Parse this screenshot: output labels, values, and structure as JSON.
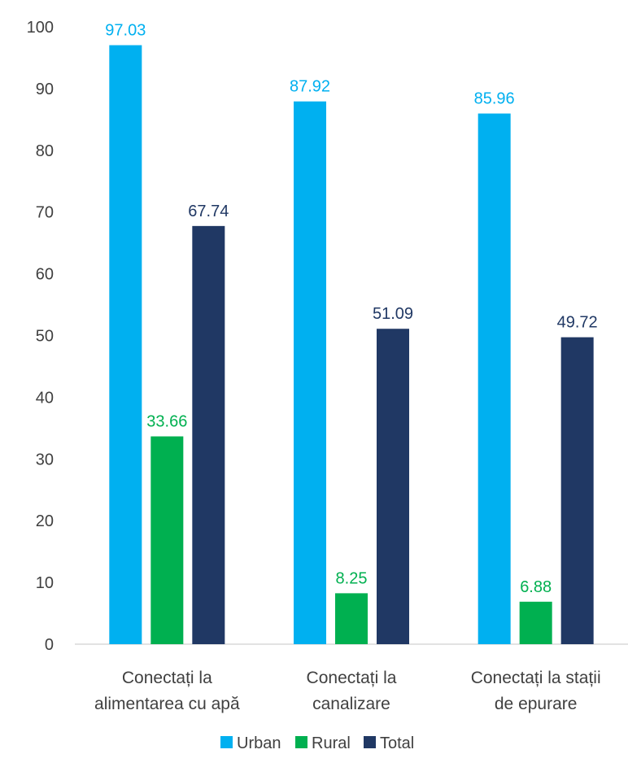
{
  "chart_data": {
    "type": "bar",
    "title": "",
    "xlabel": "",
    "ylabel": "",
    "ylim": [
      0,
      100
    ],
    "yticks": [
      0,
      10,
      20,
      30,
      40,
      50,
      60,
      70,
      80,
      90,
      100
    ],
    "grid": false,
    "legend_position": "bottom",
    "categories": [
      [
        "Conectați la",
        "alimentarea cu apă"
      ],
      [
        "Conectați la",
        "canalizare"
      ],
      [
        "Conectați la stații",
        "de epurare"
      ]
    ],
    "series": [
      {
        "name": "Urban",
        "color": "#00b0f0",
        "values": [
          97.03,
          87.92,
          85.96
        ],
        "labels": [
          "97.03",
          "87.92",
          "85.96"
        ]
      },
      {
        "name": "Rural",
        "color": "#00b050",
        "values": [
          33.66,
          8.25,
          6.88
        ],
        "labels": [
          "33.66",
          "8.25",
          "6.88"
        ]
      },
      {
        "name": "Total",
        "color": "#203864",
        "values": [
          67.74,
          51.09,
          49.72
        ],
        "labels": [
          "67.74",
          "51.09",
          "49.72"
        ]
      }
    ]
  }
}
